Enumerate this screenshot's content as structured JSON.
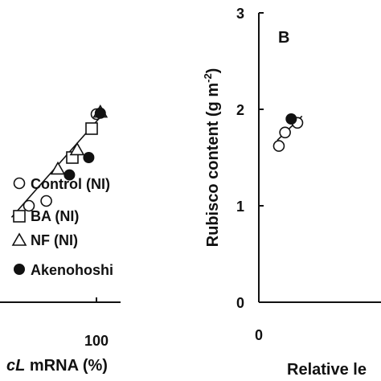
{
  "chart_data": [
    {
      "type": "scatter",
      "panel": "A",
      "xlabel_visible": "cL mRNA (%)",
      "xlabel_italic_part": "cL",
      "xlabel_plain_part": " mRNA (%)",
      "x_ticks": [
        "100"
      ],
      "xlim": [
        0,
        120
      ],
      "ylim": [
        0,
        3
      ],
      "legend": [
        {
          "label": "Control (NI)",
          "marker": "open-circle"
        },
        {
          "label": "BA (NI)",
          "marker": "open-square"
        },
        {
          "label": "NF (NI)",
          "marker": "open-triangle"
        },
        {
          "label": "Akenohoshi",
          "marker": "filled-circle"
        }
      ],
      "legend_position": "bottom-right",
      "series": [
        {
          "name": "Control (NI)",
          "marker": "open-circle",
          "points": [
            [
              30,
              1.0
            ],
            [
              48,
              1.05
            ],
            [
              100,
              1.95
            ]
          ]
        },
        {
          "name": "BA (NI)",
          "marker": "open-square",
          "points": [
            [
              75,
              1.5
            ],
            [
              95,
              1.8
            ]
          ]
        },
        {
          "name": "NF (NI)",
          "marker": "open-triangle",
          "points": [
            [
              60,
              1.38
            ],
            [
              80,
              1.58
            ],
            [
              104,
              1.97
            ]
          ]
        },
        {
          "name": "Akenohoshi",
          "marker": "filled-circle",
          "points": [
            [
              72,
              1.32
            ],
            [
              92,
              1.5
            ],
            [
              104,
              1.96
            ]
          ]
        }
      ],
      "fit_line": {
        "x": [
          12,
          104
        ],
        "y": [
          0.88,
          1.92
        ]
      }
    },
    {
      "type": "scatter",
      "panel": "B",
      "panel_label": "B",
      "ylabel_main": "Rubisco content (g m",
      "ylabel_sup": "-2",
      "ylabel_close": ")",
      "y_ticks": [
        "0",
        "1",
        "2",
        "3"
      ],
      "ylim": [
        0,
        3
      ],
      "x_ticks": [
        "0"
      ],
      "xlabel_visible": "Relative le",
      "xlim": [
        0,
        150
      ],
      "series": [
        {
          "name": "open-circle",
          "marker": "open-circle",
          "points": [
            [
              13,
              1.62
            ],
            [
              17,
              1.76
            ],
            [
              25,
              1.86
            ]
          ]
        },
        {
          "name": "filled-circle",
          "marker": "filled-circle",
          "points": [
            [
              21,
              1.9
            ]
          ]
        }
      ],
      "fit_line": {
        "x": [
          12,
          28
        ],
        "y": [
          1.68,
          1.93
        ]
      }
    }
  ]
}
